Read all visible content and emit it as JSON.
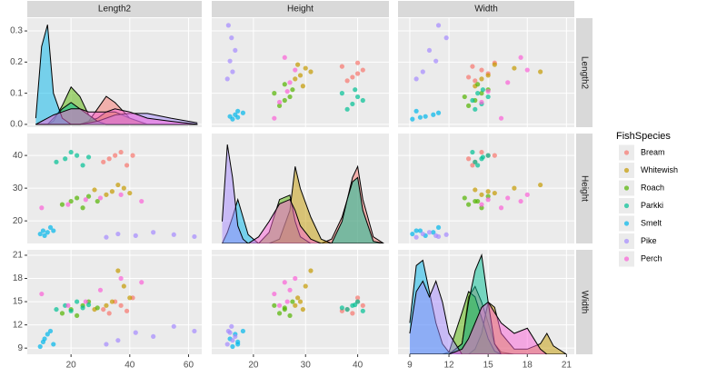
{
  "chart_data": {
    "type": "scatter_matrix",
    "variables": [
      "Length2",
      "Height",
      "Width"
    ],
    "legend_title": "FishSpecies",
    "axes": [
      {
        "xlim": [
          5.1,
          64.5
        ],
        "xticks": [
          20,
          40,
          60
        ],
        "ylim": [
          5,
          66
        ],
        "density_ylim": [
          -0.009,
          0.341
        ]
      },
      {
        "xlim": [
          12,
          46
        ],
        "xticks": [
          20,
          30,
          40
        ],
        "ylim": [
          13.1,
          46.7
        ],
        "yticks": [
          20,
          30,
          40
        ],
        "density_ylim": [
          0,
          0.5
        ]
      },
      {
        "xlim": [
          8.1,
          21.6
        ],
        "xticks": [
          9,
          12,
          15,
          18,
          21
        ],
        "ylim": [
          8.2,
          21.7
        ],
        "yticks": [
          9,
          12,
          15,
          18,
          21
        ],
        "density_ylim": [
          0,
          1
        ]
      }
    ],
    "density_yticks": [
      {
        "value": 0,
        "label": "0.0"
      },
      0.1,
      0.2,
      0.3
    ],
    "density_x": [
      [
        8,
        10,
        12,
        14,
        17,
        20,
        23,
        26,
        29,
        32,
        35,
        40,
        46,
        54,
        63
      ],
      [
        14,
        15,
        16,
        17,
        18,
        19,
        21,
        23,
        25,
        27,
        28,
        29,
        31,
        33,
        35,
        37,
        38,
        39,
        40,
        41,
        43,
        45
      ],
      [
        9,
        9.5,
        10,
        10.5,
        11,
        11.5,
        12,
        13,
        13.5,
        14,
        14.5,
        15,
        15.5,
        16,
        17,
        18,
        19,
        19.5,
        20,
        21
      ]
    ],
    "grid": true,
    "series": [
      {
        "name": "Bream",
        "color": "#F8766D",
        "values": [
          [
            31,
            33,
            35,
            37,
            39,
            41
          ],
          [
            38,
            39,
            40,
            41,
            37,
            40
          ],
          [
            14,
            13.5,
            15,
            14.5,
            13.8,
            15.5
          ]
        ],
        "density": [
          [
            0,
            0,
            0,
            0,
            0,
            0,
            0,
            0.01,
            0.05,
            0.09,
            0.07,
            0.02,
            0,
            0,
            0
          ],
          [
            0,
            0,
            0,
            0,
            0,
            0,
            0,
            0,
            0,
            0,
            0,
            0,
            0,
            0,
            0.02,
            0.12,
            0.2,
            0.3,
            0.35,
            0.2,
            0.03,
            0
          ],
          [
            0,
            0,
            0,
            0,
            0,
            0,
            0,
            0.1,
            0.55,
            0.65,
            0.5,
            0.3,
            0.1,
            0.02,
            0,
            0,
            0,
            0,
            0,
            0
          ]
        ]
      },
      {
        "name": "Whitewish",
        "color": "#C49A00",
        "values": [
          [
            32,
            34,
            36,
            38,
            40,
            28
          ],
          [
            28,
            29,
            31,
            30,
            28.5,
            29.5
          ],
          [
            14.5,
            15,
            19,
            17,
            15.5,
            14
          ]
        ],
        "density": [
          [
            0,
            0,
            0,
            0,
            0,
            0,
            0,
            0.01,
            0.02,
            0.04,
            0.04,
            0.02,
            0,
            0,
            0
          ],
          [
            0,
            0,
            0,
            0,
            0,
            0,
            0,
            0,
            0.02,
            0.15,
            0.35,
            0.25,
            0.12,
            0.02,
            0,
            0,
            0,
            0,
            0,
            0,
            0,
            0
          ],
          [
            0,
            0,
            0,
            0,
            0,
            0,
            0,
            0,
            0,
            0.05,
            0.2,
            0.5,
            0.45,
            0.2,
            0.05,
            0.05,
            0.1,
            0.2,
            0.08,
            0
          ]
        ]
      },
      {
        "name": "Roach",
        "color": "#53B400",
        "values": [
          [
            17,
            20,
            22,
            24,
            26,
            29
          ],
          [
            25,
            26,
            27,
            24,
            27.5,
            26
          ],
          [
            13.5,
            14,
            13.2,
            14.5,
            15,
            14.2
          ]
        ],
        "density": [
          [
            0,
            0,
            0,
            0.01,
            0.06,
            0.12,
            0.09,
            0.03,
            0.01,
            0,
            0,
            0,
            0,
            0,
            0
          ],
          [
            0,
            0,
            0,
            0,
            0,
            0,
            0,
            0.05,
            0.2,
            0.22,
            0.1,
            0.03,
            0,
            0,
            0,
            0,
            0,
            0,
            0,
            0,
            0,
            0
          ],
          [
            0,
            0,
            0,
            0,
            0,
            0,
            0.02,
            0.4,
            0.6,
            0.55,
            0.35,
            0.15,
            0.03,
            0,
            0,
            0,
            0,
            0,
            0,
            0
          ]
        ]
      },
      {
        "name": "Parkki",
        "color": "#00C094",
        "values": [
          [
            15,
            18,
            20,
            22,
            24,
            26
          ],
          [
            38,
            39,
            41,
            40,
            37,
            39.5
          ],
          [
            14,
            14.5,
            13.8,
            15,
            14.2,
            14.6
          ]
        ],
        "density": [
          [
            0,
            0,
            0,
            0.02,
            0.05,
            0.07,
            0.05,
            0.03,
            0.01,
            0,
            0,
            0,
            0,
            0,
            0
          ],
          [
            0,
            0,
            0,
            0,
            0,
            0,
            0,
            0,
            0,
            0,
            0,
            0,
            0,
            0,
            0,
            0.1,
            0.2,
            0.28,
            0.3,
            0.15,
            0.01,
            0
          ],
          [
            0,
            0,
            0,
            0,
            0,
            0,
            0,
            0.1,
            0.5,
            0.8,
            0.95,
            0.5,
            0.1,
            0,
            0,
            0,
            0,
            0,
            0,
            0
          ]
        ]
      },
      {
        "name": "Smelt",
        "color": "#00B6EB",
        "values": [
          [
            9.5,
            10.5,
            11,
            12,
            13,
            14
          ],
          [
            16,
            17,
            15.5,
            16.5,
            18,
            17
          ],
          [
            9.2,
            9.8,
            10.2,
            10.8,
            11.2,
            9.5
          ]
        ],
        "density": [
          [
            0.02,
            0.25,
            0.32,
            0.1,
            0.02,
            0,
            0,
            0,
            0,
            0,
            0,
            0,
            0,
            0,
            0
          ],
          [
            0,
            0.05,
            0.12,
            0.2,
            0.12,
            0.04,
            0,
            0,
            0,
            0,
            0,
            0,
            0,
            0,
            0,
            0,
            0,
            0,
            0,
            0,
            0,
            0
          ],
          [
            0.3,
            0.85,
            0.9,
            0.6,
            0.3,
            0.1,
            0.02,
            0,
            0,
            0,
            0,
            0,
            0,
            0,
            0,
            0,
            0,
            0,
            0,
            0
          ]
        ]
      },
      {
        "name": "Pike",
        "color": "#A58AFF",
        "values": [
          [
            32,
            36,
            42,
            48,
            55,
            62
          ],
          [
            15,
            16,
            15.5,
            16.5,
            15.8,
            15.2
          ],
          [
            9.5,
            10,
            11,
            10.5,
            11.8,
            11.2
          ]
        ],
        "density": [
          [
            0,
            0,
            0,
            0,
            0,
            0,
            0,
            0.005,
            0.01,
            0.02,
            0.03,
            0.035,
            0.035,
            0.02,
            0.005
          ],
          [
            0.1,
            0.45,
            0.3,
            0.08,
            0.02,
            0,
            0,
            0,
            0,
            0,
            0,
            0,
            0,
            0,
            0,
            0,
            0,
            0,
            0,
            0,
            0,
            0
          ],
          [
            0.2,
            0.6,
            0.7,
            0.55,
            0.7,
            0.5,
            0.2,
            0,
            0,
            0,
            0,
            0,
            0,
            0,
            0,
            0,
            0,
            0,
            0,
            0
          ]
        ]
      },
      {
        "name": "Perch",
        "color": "#FB61D7",
        "values": [
          [
            10,
            19,
            25,
            30,
            37,
            44
          ],
          [
            24,
            25,
            26.5,
            27,
            28,
            26
          ],
          [
            16,
            14.5,
            15,
            16.5,
            18,
            17.5
          ]
        ],
        "density": [
          [
            0,
            0.01,
            0.02,
            0.03,
            0.04,
            0.05,
            0.05,
            0.04,
            0.04,
            0.04,
            0.05,
            0.04,
            0.02,
            0.01,
            0
          ],
          [
            0,
            0,
            0,
            0,
            0,
            0,
            0.03,
            0.1,
            0.18,
            0.2,
            0.15,
            0.08,
            0.02,
            0,
            0,
            0,
            0,
            0,
            0,
            0,
            0,
            0
          ],
          [
            0,
            0,
            0,
            0,
            0,
            0,
            0,
            0.05,
            0.15,
            0.3,
            0.45,
            0.5,
            0.4,
            0.3,
            0.2,
            0.25,
            0.05,
            0,
            0,
            0
          ]
        ]
      }
    ]
  }
}
